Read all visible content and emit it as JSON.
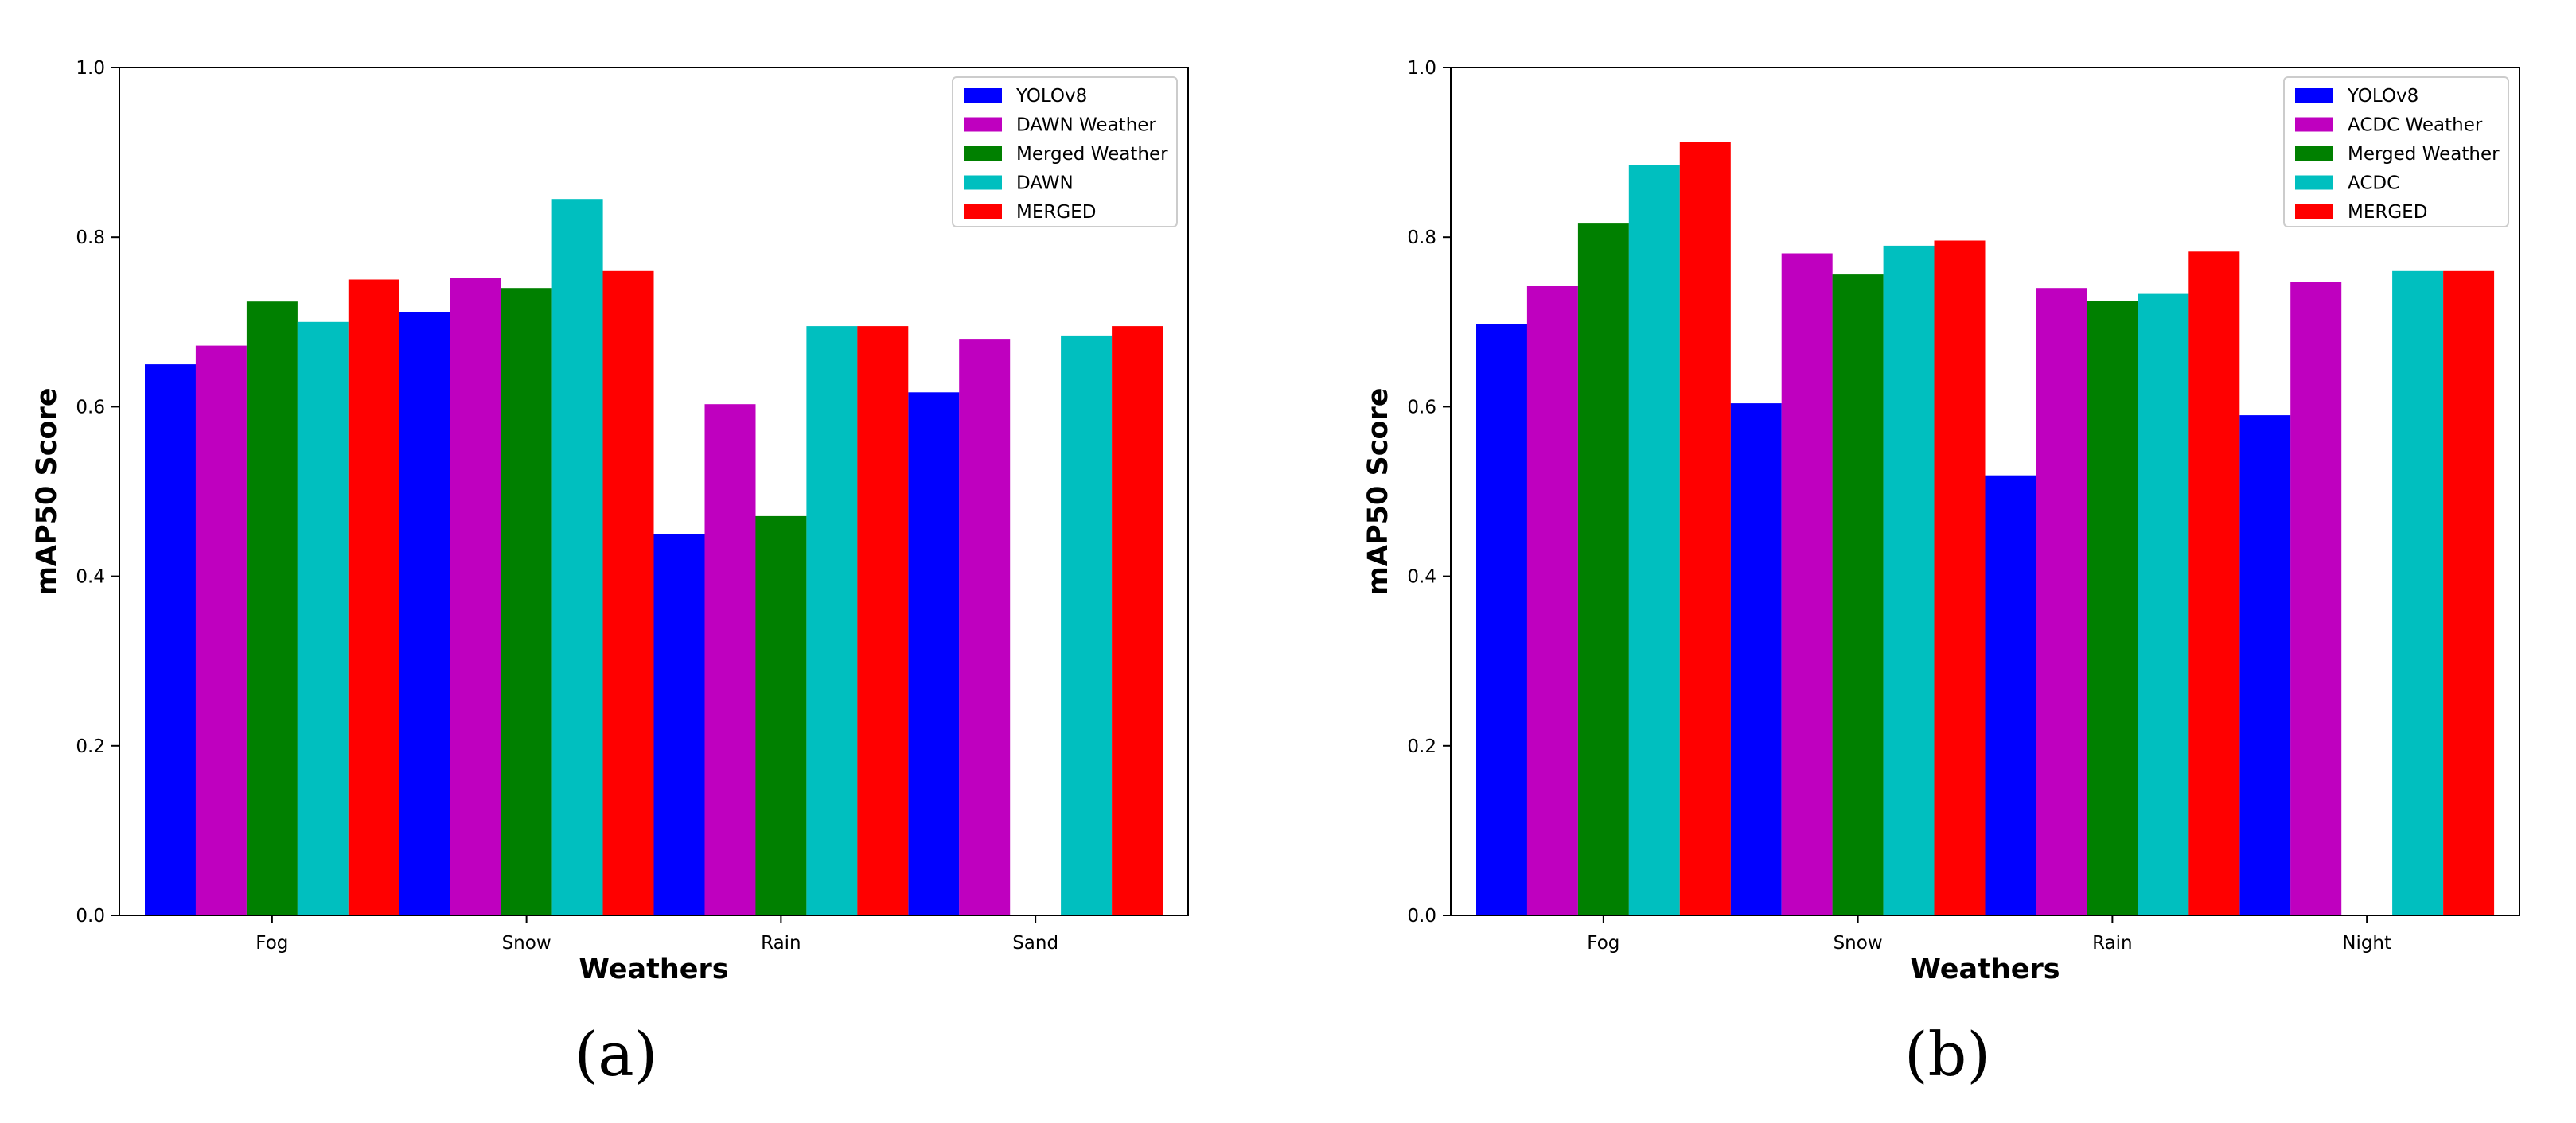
{
  "chart_data": [
    {
      "type": "bar",
      "panel_label": "(a)",
      "categories": [
        "Fog",
        "Snow",
        "Rain",
        "Sand"
      ],
      "xlabel": "Weathers",
      "ylabel": "mAP50 Score",
      "ylim": [
        0,
        1.0
      ],
      "yticks": [
        "0.0",
        "0.2",
        "0.4",
        "0.6",
        "0.8",
        "1.0"
      ],
      "grid": false,
      "legend_position": "top-right",
      "series": [
        {
          "name": "YOLOv8",
          "color": "#0000ff",
          "values": [
            0.65,
            0.712,
            0.45,
            0.617
          ]
        },
        {
          "name": "DAWN Weather",
          "color": "#bf00bf",
          "values": [
            0.672,
            0.752,
            0.603,
            0.68
          ]
        },
        {
          "name": "Merged Weather",
          "color": "#008000",
          "values": [
            0.724,
            0.74,
            0.471,
            null
          ]
        },
        {
          "name": "DAWN",
          "color": "#00bfbf",
          "values": [
            0.7,
            0.845,
            0.695,
            0.684
          ]
        },
        {
          "name": "MERGED",
          "color": "#ff0000",
          "values": [
            0.75,
            0.76,
            0.695,
            0.695
          ]
        }
      ]
    },
    {
      "type": "bar",
      "panel_label": "(b)",
      "categories": [
        "Fog",
        "Snow",
        "Rain",
        "Night"
      ],
      "xlabel": "Weathers",
      "ylabel": "mAP50 Score",
      "ylim": [
        0,
        1.0
      ],
      "yticks": [
        "0.0",
        "0.2",
        "0.4",
        "0.6",
        "0.8",
        "1.0"
      ],
      "grid": false,
      "legend_position": "top-right",
      "series": [
        {
          "name": "YOLOv8",
          "color": "#0000ff",
          "values": [
            0.697,
            0.604,
            0.519,
            0.59
          ]
        },
        {
          "name": "ACDC Weather",
          "color": "#bf00bf",
          "values": [
            0.742,
            0.781,
            0.74,
            0.747
          ]
        },
        {
          "name": "Merged Weather",
          "color": "#008000",
          "values": [
            0.816,
            0.756,
            0.725,
            null
          ]
        },
        {
          "name": "ACDC",
          "color": "#00bfbf",
          "values": [
            0.885,
            0.79,
            0.733,
            0.76
          ]
        },
        {
          "name": "MERGED",
          "color": "#ff0000",
          "values": [
            0.912,
            0.796,
            0.783,
            0.76
          ]
        }
      ]
    }
  ]
}
